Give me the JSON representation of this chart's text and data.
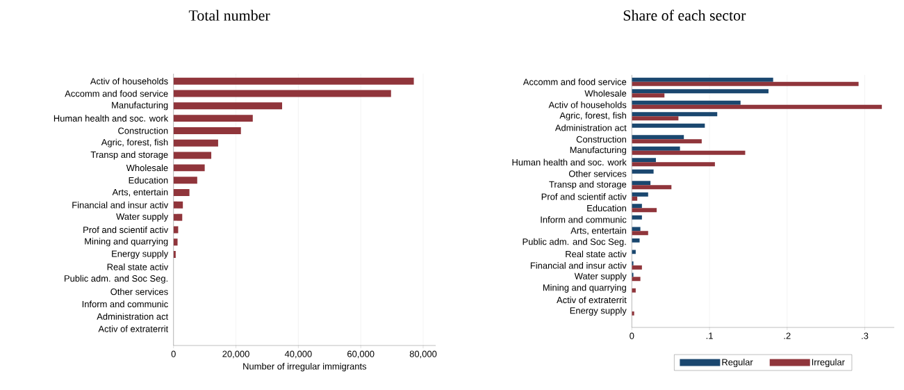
{
  "chart_data": [
    {
      "type": "bar",
      "orientation": "horizontal",
      "title": "Total number",
      "xlabel": "Number of irregular immigrants",
      "categories": [
        "Activ of households",
        "Accomm and food service",
        "Manufacturing",
        "Human health and soc. work",
        "Construction",
        "Agric, forest, fish",
        "Transp and storage",
        "Wholesale",
        "Education",
        "Arts, entertain",
        "Financial and insur activ",
        "Water supply",
        "Prof and scientif activ",
        "Mining and quarrying",
        "Energy supply",
        "Real state activ",
        "Public adm. and Soc Seg.",
        "Other services",
        "Inform and communic",
        "Administration act",
        "Activ of extraterrit"
      ],
      "values": [
        77000,
        69700,
        34800,
        25400,
        21600,
        14300,
        12100,
        10000,
        7600,
        5100,
        3000,
        2800,
        1500,
        1300,
        700,
        0,
        0,
        0,
        0,
        0,
        0
      ],
      "color": "#90353b",
      "xlim": [
        0,
        84000
      ],
      "xticks": [
        0,
        {
          "value": 20000,
          "label": "20,000"
        },
        {
          "value": 40000,
          "label": "40,000"
        },
        {
          "value": 60000,
          "label": "60,000"
        },
        {
          "value": 80000,
          "label": "80,000"
        }
      ],
      "grid": "x",
      "legend": false
    },
    {
      "type": "bar",
      "orientation": "horizontal",
      "title": "Share of each sector",
      "categories": [
        "Accomm and food service",
        "Wholesale",
        "Activ of households",
        "Agric, forest, fish",
        "Administration act",
        "Construction",
        "Manufacturing",
        "Human health and soc. work",
        "Other services",
        "Transp and storage",
        "Prof and scientif activ",
        "Education",
        "Inform and communic",
        "Arts, entertain",
        "Public adm. and Soc Seg.",
        "Real state activ",
        "Financial and insur activ",
        "Water supply",
        "Mining and quarrying",
        "Activ of extraterrit",
        "Energy supply"
      ],
      "series": [
        {
          "name": "Regular",
          "color": "#1a476f",
          "values": [
            0.182,
            0.176,
            0.14,
            0.11,
            0.094,
            0.067,
            0.062,
            0.031,
            0.028,
            0.024,
            0.021,
            0.013,
            0.013,
            0.011,
            0.01,
            0.005,
            0.002,
            0.002,
            0,
            0,
            0
          ]
        },
        {
          "name": "Irregular",
          "color": "#90353b",
          "values": [
            0.292,
            0.042,
            0.322,
            0.06,
            0,
            0.09,
            0.146,
            0.107,
            0,
            0.051,
            0.007,
            0.032,
            0,
            0.021,
            0,
            0,
            0.013,
            0.011,
            0.005,
            0,
            0.003
          ]
        }
      ],
      "xlim": [
        0,
        0.338
      ],
      "xticks": [
        0,
        {
          "value": 0.1,
          "label": ".1"
        },
        {
          "value": 0.2,
          "label": ".2"
        },
        {
          "value": 0.3,
          "label": ".3"
        }
      ],
      "grid": "x",
      "legend": "bottom"
    }
  ]
}
